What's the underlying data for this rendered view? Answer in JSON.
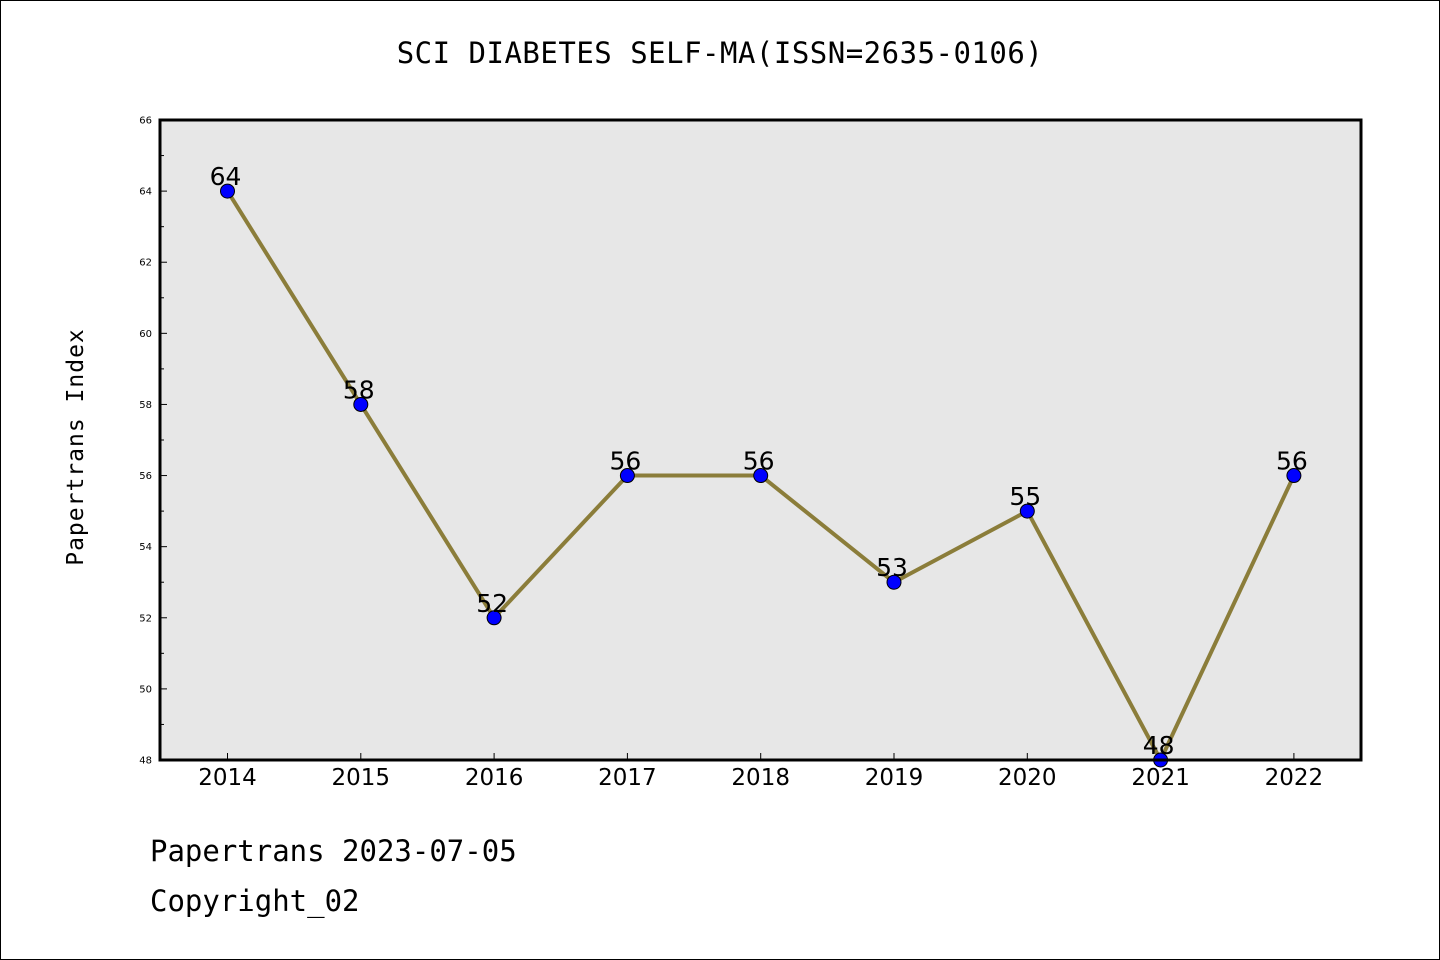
{
  "chart_data": {
    "type": "line",
    "title": "SCI DIABETES SELF-MA(ISSN=2635-0106)",
    "xlabel": "",
    "ylabel": "Papertrans Index",
    "categories": [
      "2014",
      "2015",
      "2016",
      "2017",
      "2018",
      "2019",
      "2020",
      "2021",
      "2022"
    ],
    "series": [
      {
        "values": [
          64,
          58,
          52,
          56,
          56,
          53,
          55,
          48,
          56
        ]
      }
    ],
    "ylim": [
      48,
      66
    ],
    "yticks": [
      48,
      50,
      52,
      54,
      56,
      58,
      60,
      62,
      64,
      66
    ],
    "grid": false,
    "data_labels": true,
    "colors": {
      "line": "#8b7d3a",
      "marker": "#0000ff",
      "plot_background": "#e7e7e7"
    }
  },
  "footer": {
    "line1": "Papertrans 2023-07-05",
    "line2": "Copyright_02"
  }
}
